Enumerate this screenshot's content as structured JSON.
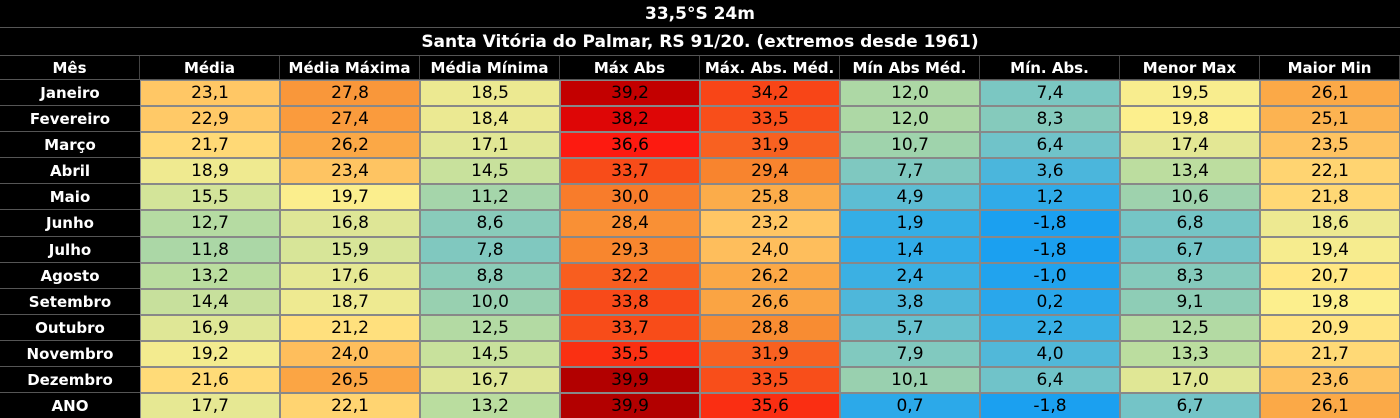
{
  "title": "33,5°S 24m",
  "subtitle": "Santa Vitória do Palmar, RS 91/20. (extremos desde 1961)",
  "table": {
    "header": [
      "Mês",
      "Média",
      "Média Máxima",
      "Média Mínima",
      "Máx Abs",
      "Máx. Abs. Méd.",
      "Mín Abs Méd.",
      "Mín. Abs.",
      "Menor Max",
      "Maior Min"
    ],
    "rows": [
      [
        "Janeiro",
        "23,1",
        "27,8",
        "18,5",
        "39,2",
        "34,2",
        "12,0",
        "7,4",
        "19,5",
        "26,1"
      ],
      [
        "Fevereiro",
        "22,9",
        "27,4",
        "18,4",
        "38,2",
        "33,5",
        "12,0",
        "8,3",
        "19,8",
        "25,1"
      ],
      [
        "Março",
        "21,7",
        "26,2",
        "17,1",
        "36,6",
        "31,9",
        "10,7",
        "6,4",
        "17,4",
        "23,5"
      ],
      [
        "Abril",
        "18,9",
        "23,4",
        "14,5",
        "33,7",
        "29,4",
        "7,7",
        "3,6",
        "13,4",
        "22,1"
      ],
      [
        "Maio",
        "15,5",
        "19,7",
        "11,2",
        "30,0",
        "25,8",
        "4,9",
        "1,2",
        "10,6",
        "21,8"
      ],
      [
        "Junho",
        "12,7",
        "16,8",
        "8,6",
        "28,4",
        "23,2",
        "1,9",
        "-1,8",
        "6,8",
        "18,6"
      ],
      [
        "Julho",
        "11,8",
        "15,9",
        "7,8",
        "29,3",
        "24,0",
        "1,4",
        "-1,8",
        "6,7",
        "19,4"
      ],
      [
        "Agosto",
        "13,2",
        "17,6",
        "8,8",
        "32,2",
        "26,2",
        "2,4",
        "-1,0",
        "8,3",
        "20,7"
      ],
      [
        "Setembro",
        "14,4",
        "18,7",
        "10,0",
        "33,8",
        "26,6",
        "3,8",
        "0,2",
        "9,1",
        "19,8"
      ],
      [
        "Outubro",
        "16,9",
        "21,2",
        "12,5",
        "33,7",
        "28,8",
        "5,7",
        "2,2",
        "12,5",
        "20,9"
      ],
      [
        "Novembro",
        "19,2",
        "24,0",
        "14,5",
        "35,5",
        "31,9",
        "7,9",
        "4,0",
        "13,3",
        "21,7"
      ],
      [
        "Dezembro",
        "21,6",
        "26,5",
        "16,7",
        "39,9",
        "33,5",
        "10,1",
        "6,4",
        "17,0",
        "23,6"
      ],
      [
        "ANO",
        "17,7",
        "22,1",
        "13,2",
        "39,9",
        "35,6",
        "0,7",
        "-1,8",
        "6,7",
        "26,1"
      ]
    ]
  }
}
